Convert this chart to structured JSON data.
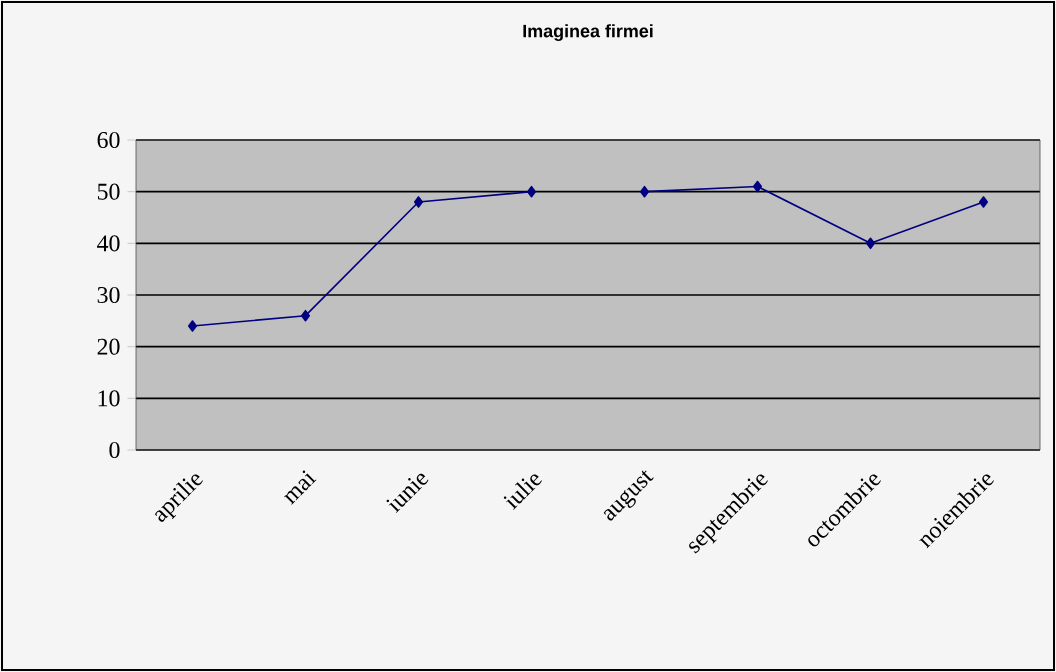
{
  "chart_data": {
    "type": "line",
    "title": "Imaginea firmei",
    "categories": [
      "aprilie",
      "mai",
      "iunie",
      "iulie",
      "august",
      "septembrie",
      "octombrie",
      "noiembrie"
    ],
    "series": [
      {
        "color": "#000080",
        "values": [
          24,
          26,
          48,
          50,
          null,
          null,
          null,
          null
        ]
      },
      {
        "color": "#000080",
        "values": [
          null,
          null,
          null,
          null,
          50,
          51,
          40,
          48
        ]
      }
    ],
    "ylim": [
      0,
      60
    ],
    "yticks": [
      0,
      10,
      20,
      30,
      40,
      50,
      60
    ],
    "grid": "y",
    "marker": "diamond",
    "line_style": "solid"
  }
}
